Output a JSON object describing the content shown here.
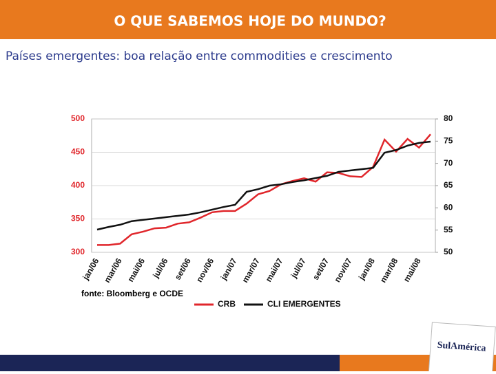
{
  "header": {
    "title": "O QUE SABEMOS HOJE DO MUNDO?"
  },
  "subtitle": "Países emergentes: boa relação entre commodities e crescimento",
  "logo": "SulAmérica",
  "chart_data": {
    "type": "line",
    "categories": [
      "jan/06",
      null,
      "mar/06",
      null,
      "mai/06",
      null,
      "jul/06",
      null,
      "set/06",
      null,
      "nov/06",
      null,
      "jan/07",
      null,
      "mar/07",
      null,
      "mai/07",
      null,
      "jul/07",
      null,
      "set/07",
      null,
      "nov/07",
      null,
      "jan/08",
      null,
      "mar/08",
      null,
      "mai/08",
      null
    ],
    "series": [
      {
        "name": "CRB",
        "color": "#e0262b",
        "values": [
          311,
          311,
          313,
          327,
          331,
          336,
          337,
          343,
          345,
          352,
          360,
          362,
          362,
          373,
          387,
          392,
          402,
          407,
          411,
          406,
          420,
          419,
          414,
          413,
          428,
          469,
          451,
          470,
          457,
          477
        ]
      },
      {
        "name": "CLI EMERGENTES",
        "color": "#111111",
        "axis": "y2",
        "values": [
          55.1,
          55.7,
          56.2,
          57.0,
          57.3,
          57.6,
          57.9,
          58.2,
          58.5,
          59.0,
          59.6,
          60.2,
          60.7,
          63.6,
          64.2,
          65.0,
          65.3,
          65.8,
          66.2,
          66.7,
          67.2,
          68.1,
          68.4,
          68.7,
          69.0,
          72.4,
          73.0,
          74.0,
          74.6,
          74.9
        ]
      }
    ],
    "ylim": [
      300,
      500
    ],
    "yticks": [
      300,
      350,
      400,
      450,
      500
    ],
    "ytick_color": "#e0262b",
    "y2lim": [
      50,
      80
    ],
    "y2ticks": [
      50,
      55,
      60,
      65,
      70,
      75,
      80
    ],
    "grid": true,
    "source": "fonte: Bloomberg e OCDE"
  }
}
